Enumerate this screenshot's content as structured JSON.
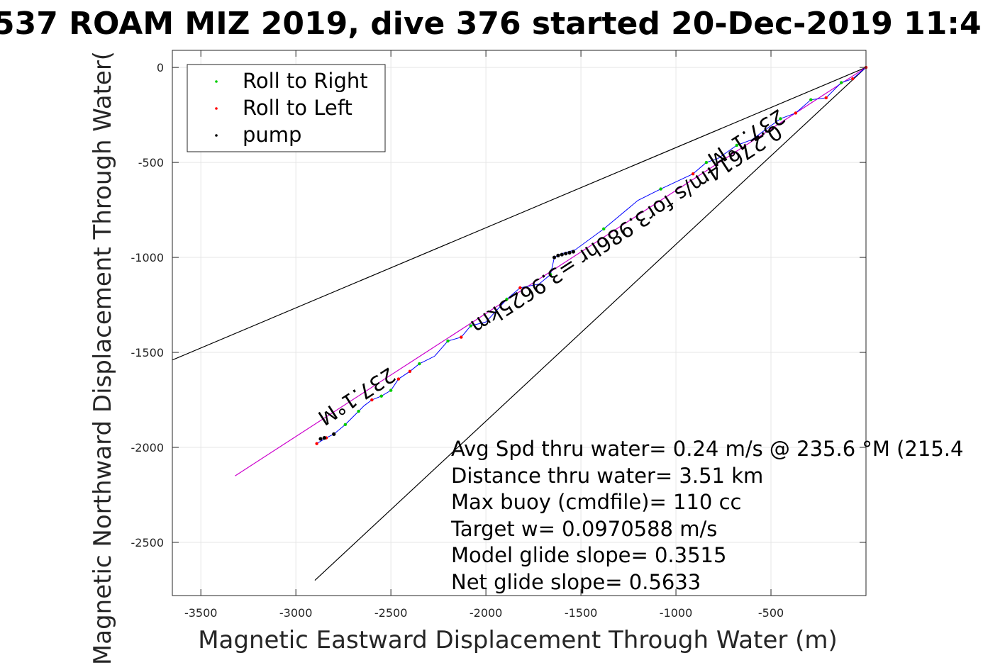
{
  "chart_data": {
    "type": "scatter",
    "title": "537 ROAM MIZ 2019, dive 376 started 20-Dec-2019 11:4",
    "xlabel": "Magnetic Eastward Displacement Through Water (m)",
    "ylabel": "Magnetic Northward Displacement Through Water(",
    "xlim": [
      -3650,
      0
    ],
    "ylim": [
      -2780,
      90
    ],
    "grid": true,
    "legend_position": "top-left",
    "x_ticks": [
      -3500,
      -3000,
      -2500,
      -2000,
      -1500,
      -1000,
      -500
    ],
    "y_ticks": [
      0,
      -500,
      -1000,
      -1500,
      -2000,
      -2500
    ],
    "x_tick_labels": [
      "-3500",
      "-3000",
      "-2500",
      "-2000",
      "-1500",
      "-1000",
      "-500"
    ],
    "y_tick_labels": [
      "0",
      "-500",
      "-1000",
      "-1500",
      "-2000",
      "-2500"
    ],
    "track": {
      "color": "#0000ff",
      "x": [
        0,
        -70,
        -130,
        -210,
        -290,
        -370,
        -450,
        -600,
        -680,
        -780,
        -840,
        -910,
        -1080,
        -1200,
        -1380,
        -1530,
        -1600,
        -1640,
        -1660,
        -1720,
        -1820,
        -1890,
        -2000,
        -2080,
        -2130,
        -2200,
        -2270,
        -2350,
        -2400,
        -2460,
        -2500,
        -2550,
        -2600,
        -2640,
        -2670,
        -2700,
        -2740,
        -2800,
        -2840,
        -2890
      ],
      "y": [
        0,
        -60,
        -80,
        -160,
        -170,
        -240,
        -270,
        -380,
        -410,
        -480,
        -500,
        -560,
        -640,
        -700,
        -850,
        -960,
        -980,
        -1000,
        -1090,
        -1140,
        -1160,
        -1220,
        -1340,
        -1360,
        -1420,
        -1440,
        -1520,
        -1560,
        -1600,
        -1640,
        -1700,
        -1730,
        -1750,
        -1780,
        -1810,
        -1840,
        -1880,
        -1930,
        -1950,
        -1980
      ]
    },
    "series": [
      {
        "name": "Roll to Right",
        "color": "#00cc00",
        "x": [
          -130,
          -290,
          -450,
          -680,
          -840,
          -1080,
          -1380,
          -1660,
          -1890,
          -2080,
          -2200,
          -2350,
          -2500,
          -2550,
          -2670,
          -2740
        ],
        "y": [
          -80,
          -170,
          -270,
          -410,
          -500,
          -640,
          -850,
          -1090,
          -1220,
          -1360,
          -1440,
          -1560,
          -1700,
          -1730,
          -1810,
          -1880
        ]
      },
      {
        "name": "Roll to Left",
        "color": "#ff0000",
        "x": [
          0,
          -70,
          -210,
          -370,
          -910,
          -1820,
          -2130,
          -2400,
          -2460,
          -2600,
          -2840,
          -2890
        ],
        "y": [
          0,
          -60,
          -160,
          -240,
          -560,
          -1160,
          -1420,
          -1600,
          -1640,
          -1750,
          -1950,
          -1980
        ]
      },
      {
        "name": "pump",
        "color": "#000000",
        "x": [
          -1640,
          -1620,
          -1600,
          -1580,
          -1560,
          -1540,
          -2800,
          -2850,
          -2870
        ],
        "y": [
          -1000,
          -990,
          -985,
          -980,
          -975,
          -970,
          -1930,
          -1950,
          -1955
        ]
      }
    ],
    "reference_lines": [
      {
        "color": "#000000",
        "x": [
          0,
          -3650
        ],
        "y": [
          0,
          -1540
        ]
      },
      {
        "color": "#000000",
        "x": [
          0,
          -2900
        ],
        "y": [
          0,
          -2700
        ]
      },
      {
        "color": "#cc00cc",
        "x": [
          0,
          -3320
        ],
        "y": [
          0,
          -2150
        ]
      }
    ],
    "annotations": [
      {
        "text": "237.1°M",
        "x": -2700,
        "y": -1700,
        "rotate": 147
      },
      {
        "text": "237.1°M",
        "x": -650,
        "y": -340,
        "rotate": 147
      },
      {
        "text": "0.27614m/s for3.986hr =3.9625km",
        "x": -1280,
        "y": -820,
        "rotate": 147
      }
    ],
    "info_lines": [
      "Avg Spd thru water=  0.24 m/s @ 235.6 °M (215.4",
      "Distance thru water=  3.51 km",
      "Max buoy (cmdfile)= 110 cc",
      "Target w= 0.0970588 m/s",
      "Model glide slope= 0.3515",
      "Net glide slope= 0.5633"
    ]
  }
}
